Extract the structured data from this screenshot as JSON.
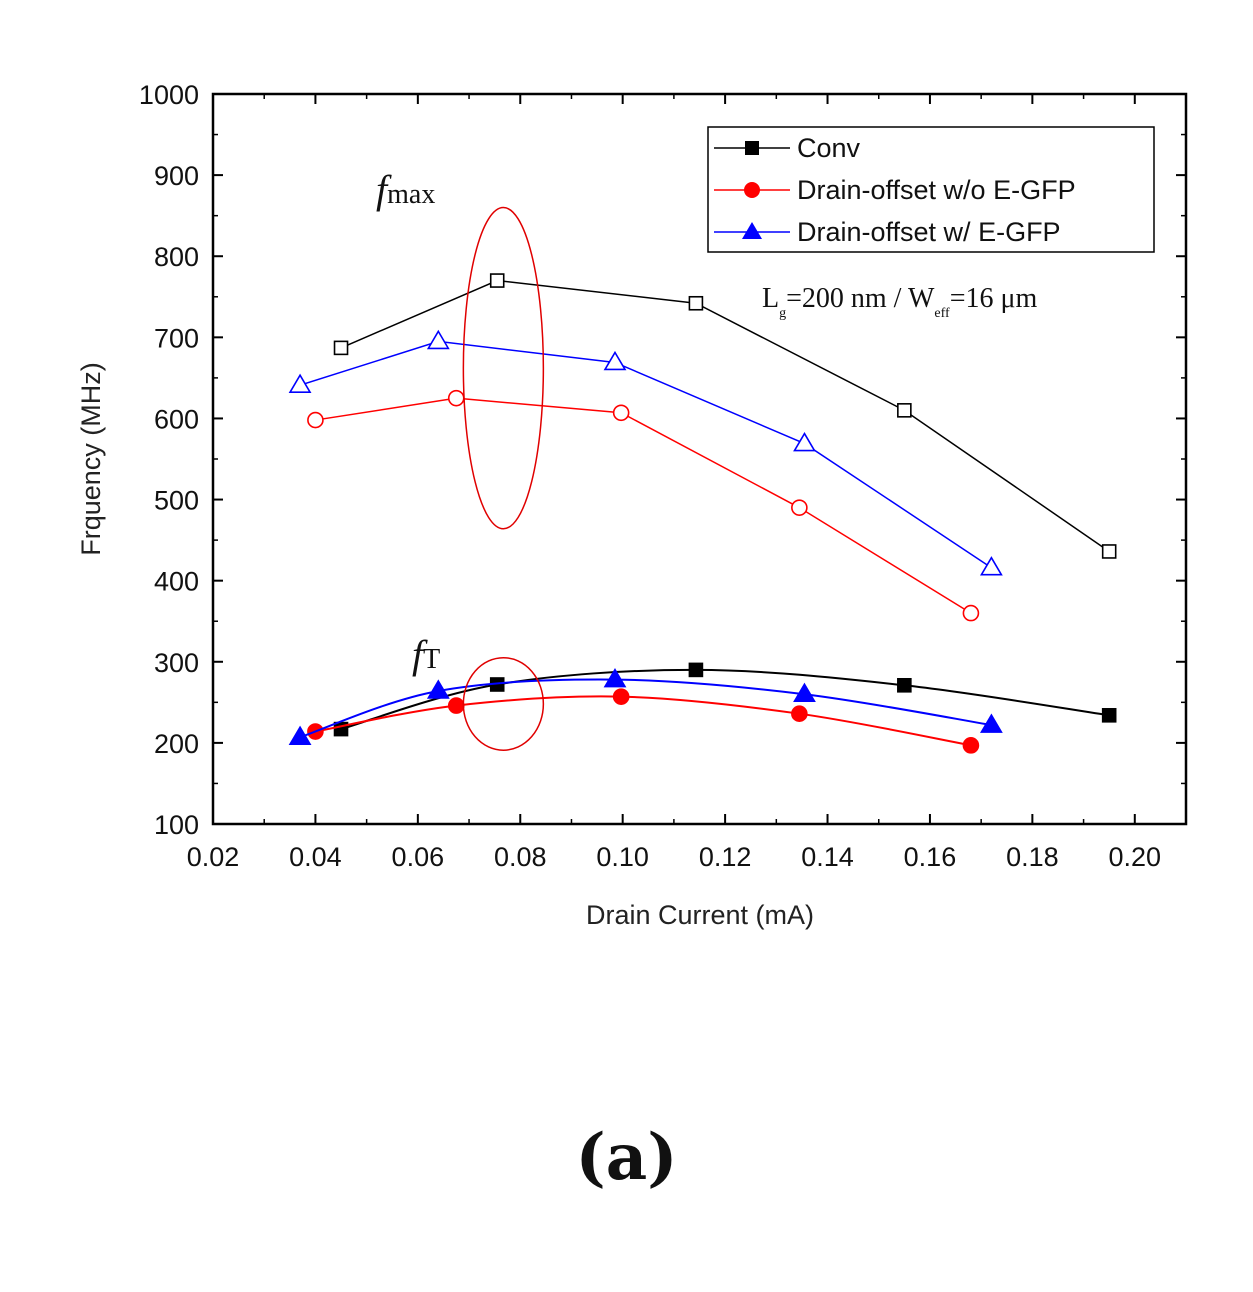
{
  "panel_label": "(a)",
  "colors": {
    "conv": "#000000",
    "wo": "#ff0000",
    "w": "#0000ff",
    "highlight": "#e00000"
  },
  "chart_data": {
    "type": "line",
    "title": "",
    "xlabel": "Drain Current (mA)",
    "ylabel": "Frquency (MHz)",
    "xlim": [
      0.02,
      0.21
    ],
    "ylim": [
      100,
      1000
    ],
    "xticks": [
      0.02,
      0.04,
      0.06,
      0.08,
      0.1,
      0.12,
      0.14,
      0.16,
      0.18,
      0.2
    ],
    "xtick_labels": [
      "0.02",
      "0.04",
      "0.06",
      "0.08",
      "0.10",
      "0.12",
      "0.14",
      "0.16",
      "0.18",
      "0.20"
    ],
    "yticks": [
      100,
      200,
      300,
      400,
      500,
      600,
      700,
      800,
      900,
      1000
    ],
    "ytick_labels": [
      "100",
      "200",
      "300",
      "400",
      "500",
      "600",
      "700",
      "800",
      "900",
      "1000"
    ],
    "legend": {
      "placement": "top-right",
      "entries": [
        "Conv",
        "Drain-offset w/o E-GFP",
        "Drain-offset w/ E-GFP"
      ]
    },
    "annotations": {
      "fmax": {
        "main": "f",
        "sub": "max"
      },
      "ft": {
        "main": "f",
        "sub": "T"
      },
      "device": {
        "l": "L",
        "l_sub": "g",
        "mid": "=200 nm / W",
        "w_sub": "eff",
        "end": "=16 μm"
      }
    },
    "series": [
      {
        "name": "Conv fmax",
        "group": "conv",
        "metric": "fmax",
        "marker": "square",
        "filled": false,
        "x": [
          0.045,
          0.0755,
          0.1143,
          0.155,
          0.195
        ],
        "y": [
          687,
          770,
          742,
          610,
          436
        ]
      },
      {
        "name": "Drain-offset w/o E-GFP fmax",
        "group": "wo",
        "metric": "fmax",
        "marker": "circle",
        "filled": false,
        "x": [
          0.04,
          0.0675,
          0.0997,
          0.1345,
          0.168
        ],
        "y": [
          598,
          625,
          607,
          490,
          360
        ]
      },
      {
        "name": "Drain-offset w/ E-GFP fmax",
        "group": "w",
        "metric": "fmax",
        "marker": "triangle",
        "filled": false,
        "x": [
          0.037,
          0.064,
          0.0985,
          0.1355,
          0.172
        ],
        "y": [
          641,
          695,
          669,
          569,
          416
        ]
      },
      {
        "name": "Conv fT",
        "group": "conv",
        "metric": "ft",
        "marker": "square",
        "filled": true,
        "x": [
          0.045,
          0.0755,
          0.1143,
          0.155,
          0.195
        ],
        "y": [
          217,
          272,
          290,
          271,
          234
        ]
      },
      {
        "name": "Drain-offset w/o E-GFP fT",
        "group": "wo",
        "metric": "ft",
        "marker": "circle",
        "filled": true,
        "x": [
          0.04,
          0.0675,
          0.0997,
          0.1345,
          0.168
        ],
        "y": [
          214,
          246,
          257,
          236,
          197
        ]
      },
      {
        "name": "Drain-offset w/ E-GFP fT",
        "group": "w",
        "metric": "ft",
        "marker": "triangle",
        "filled": true,
        "x": [
          0.037,
          0.064,
          0.0985,
          0.1355,
          0.172
        ],
        "y": [
          207,
          264,
          278,
          260,
          222
        ]
      }
    ],
    "highlight_ellipses": [
      {
        "cx": 0.0767,
        "cy": 662,
        "rx": 0.0035,
        "ry": 198
      },
      {
        "cx": 0.0767,
        "cy": 248,
        "rx": 0.0028,
        "ry": 57
      }
    ]
  }
}
